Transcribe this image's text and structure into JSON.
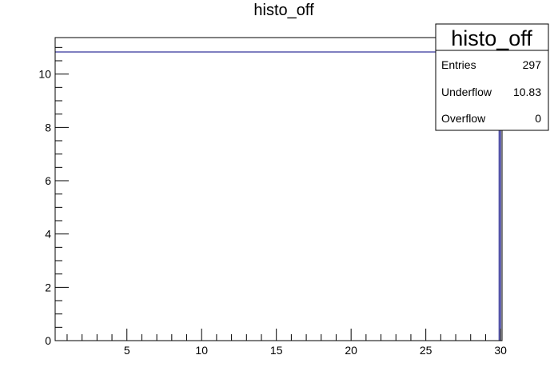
{
  "chart_data": {
    "type": "bar",
    "title": "histo_off",
    "xlabel": "",
    "ylabel": "",
    "xlim": [
      0.2,
      30.1
    ],
    "ylim": [
      0,
      11.37
    ],
    "grid": false,
    "x_ticks": [
      5,
      10,
      15,
      20,
      25,
      30
    ],
    "y_ticks": [
      0,
      2,
      4,
      6,
      8,
      10
    ],
    "bins": [
      {
        "x_low": 0.2,
        "x_high": 30.0,
        "value": 10.83
      },
      {
        "x_low": 29.9,
        "x_high": 30.0,
        "value": 10.83
      }
    ],
    "series_color": "#000080",
    "stats_box": {
      "title": "histo_off",
      "entries_label": "Entries",
      "entries_value": "297",
      "underflow_label": "Underflow",
      "underflow_value": "10.83",
      "overflow_label": "Overflow",
      "overflow_value": "0"
    }
  }
}
